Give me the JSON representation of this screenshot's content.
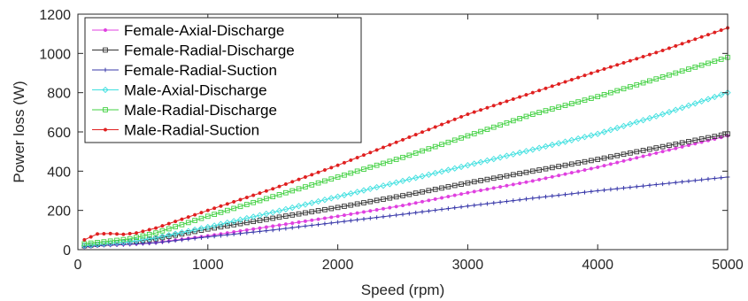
{
  "chart_data": {
    "type": "line",
    "title": "",
    "xlabel": "Speed (rpm)",
    "ylabel": "Power loss (W)",
    "xlim": [
      0,
      5000
    ],
    "ylim": [
      0,
      1200
    ],
    "xticks": [
      0,
      1000,
      2000,
      3000,
      4000,
      5000
    ],
    "yticks": [
      0,
      200,
      400,
      600,
      800,
      1000,
      1200
    ],
    "grid": false,
    "legend_position": "top-left",
    "series": [
      {
        "name": "Female-Axial-Discharge",
        "color": "#e040e0",
        "marker": "dot",
        "x": [
          50,
          200,
          400,
          600,
          1000,
          1500,
          2000,
          2500,
          3000,
          3500,
          4000,
          4500,
          5000
        ],
        "y": [
          12,
          22,
          28,
          36,
          70,
          120,
          170,
          225,
          290,
          350,
          420,
          500,
          580
        ]
      },
      {
        "name": "Female-Radial-Discharge",
        "color": "#333333",
        "marker": "square",
        "x": [
          50,
          200,
          400,
          600,
          1000,
          1500,
          2000,
          2500,
          3000,
          3500,
          4000,
          4500,
          5000
        ],
        "y": [
          20,
          30,
          40,
          55,
          105,
          160,
          215,
          275,
          340,
          400,
          460,
          525,
          590
        ]
      },
      {
        "name": "Female-Radial-Suction",
        "color": "#3a3aaa",
        "marker": "plus",
        "x": [
          50,
          200,
          400,
          600,
          1000,
          1500,
          2000,
          2500,
          3000,
          3500,
          4000,
          4500,
          5000
        ],
        "y": [
          15,
          22,
          27,
          35,
          65,
          100,
          140,
          180,
          222,
          262,
          300,
          335,
          370
        ]
      },
      {
        "name": "Male-Axial-Discharge",
        "color": "#40e0e0",
        "marker": "diamond",
        "x": [
          50,
          200,
          400,
          600,
          1000,
          1500,
          2000,
          2500,
          3000,
          3500,
          4000,
          4500,
          5000
        ],
        "y": [
          20,
          30,
          40,
          60,
          115,
          190,
          270,
          350,
          430,
          510,
          590,
          690,
          800
        ]
      },
      {
        "name": "Male-Radial-Discharge",
        "color": "#40d040",
        "marker": "square",
        "x": [
          50,
          200,
          400,
          600,
          1000,
          1500,
          2000,
          2500,
          3000,
          3500,
          4000,
          4500,
          5000
        ],
        "y": [
          30,
          40,
          55,
          85,
          170,
          270,
          370,
          470,
          580,
          690,
          780,
          880,
          980
        ]
      },
      {
        "name": "Male-Radial-Suction",
        "color": "#e02020",
        "marker": "dot",
        "x": [
          50,
          150,
          250,
          350,
          450,
          600,
          1000,
          1500,
          2000,
          2500,
          3000,
          3500,
          4000,
          4500,
          5000
        ],
        "y": [
          50,
          80,
          82,
          78,
          85,
          110,
          200,
          310,
          430,
          560,
          690,
          800,
          910,
          1015,
          1130
        ]
      }
    ]
  }
}
